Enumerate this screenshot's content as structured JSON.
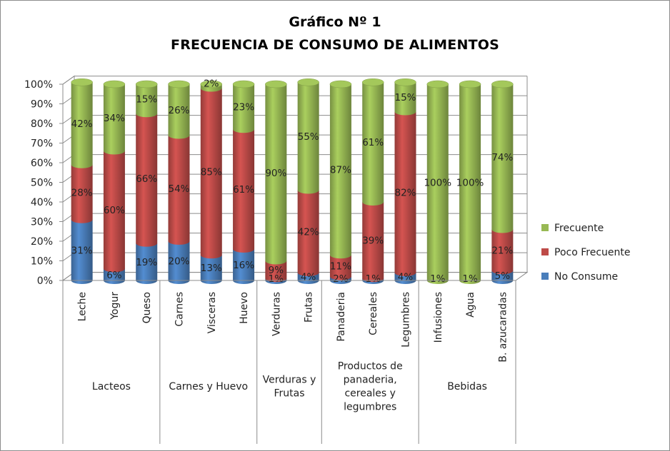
{
  "chart_data": {
    "type": "bar",
    "stacked": true,
    "percent": true,
    "title": "Gráfico Nº 1",
    "subtitle": "FRECUENCIA DE CONSUMO DE ALIMENTOS",
    "y_ticks": [
      "0%",
      "10%",
      "20%",
      "30%",
      "40%",
      "50%",
      "60%",
      "70%",
      "80%",
      "90%",
      "100%"
    ],
    "ylim": [
      0,
      100
    ],
    "categories": [
      "Leche",
      "Yogur",
      "Queso",
      "Carnes",
      "Visceras",
      "Huevo",
      "Verduras",
      "Frutas",
      "Panaderia",
      "Cereales",
      "Legumbres",
      "Infusiones",
      "Agua",
      "B. azucaradas"
    ],
    "groups": [
      {
        "label": "Lacteos",
        "count": 3
      },
      {
        "label": "Carnes y Huevo",
        "count": 3
      },
      {
        "label": "Verduras y Frutas",
        "count": 2
      },
      {
        "label": "Productos de panaderia, cereales y legumbres",
        "count": 3
      },
      {
        "label": "Bebidas",
        "count": 3
      }
    ],
    "series": [
      {
        "name": "No Consume",
        "color": "#4a7ebb",
        "values": [
          31,
          6,
          19,
          20,
          13,
          16,
          1,
          4,
          2,
          1,
          4,
          0,
          0,
          5
        ],
        "labels": [
          "31%",
          "6%",
          "19%",
          "20%",
          "13%",
          "16%",
          "1%",
          "4%",
          "2%",
          "1%",
          "4%",
          "",
          "",
          "5%"
        ]
      },
      {
        "name": "Poco Frecuente",
        "color": "#be4b48",
        "values": [
          28,
          60,
          66,
          54,
          85,
          61,
          9,
          42,
          11,
          39,
          82,
          0,
          0,
          21
        ],
        "labels": [
          "28%",
          "60%",
          "66%",
          "54%",
          "85%",
          "61%",
          "9%",
          "42%",
          "11%",
          "39%",
          "82%",
          "",
          "",
          "21%"
        ]
      },
      {
        "name": "Frecuente",
        "color": "#98b954",
        "values": [
          42,
          34,
          15,
          26,
          2,
          23,
          90,
          55,
          87,
          61,
          15,
          100,
          100,
          74
        ],
        "labels": [
          "42%",
          "34%",
          "15%",
          "26%",
          "2%",
          "23%",
          "90%",
          "55%",
          "87%",
          "61%",
          "15%",
          "100%",
          "100%",
          "74%"
        ]
      }
    ],
    "extra_labels": [
      {
        "category": "Infusiones",
        "text": "1%"
      },
      {
        "category": "Agua",
        "text": "1%"
      }
    ],
    "legend_position": "right",
    "legend_order": [
      "Frecuente",
      "Poco Frecuente",
      "No Consume"
    ],
    "grid": true
  }
}
